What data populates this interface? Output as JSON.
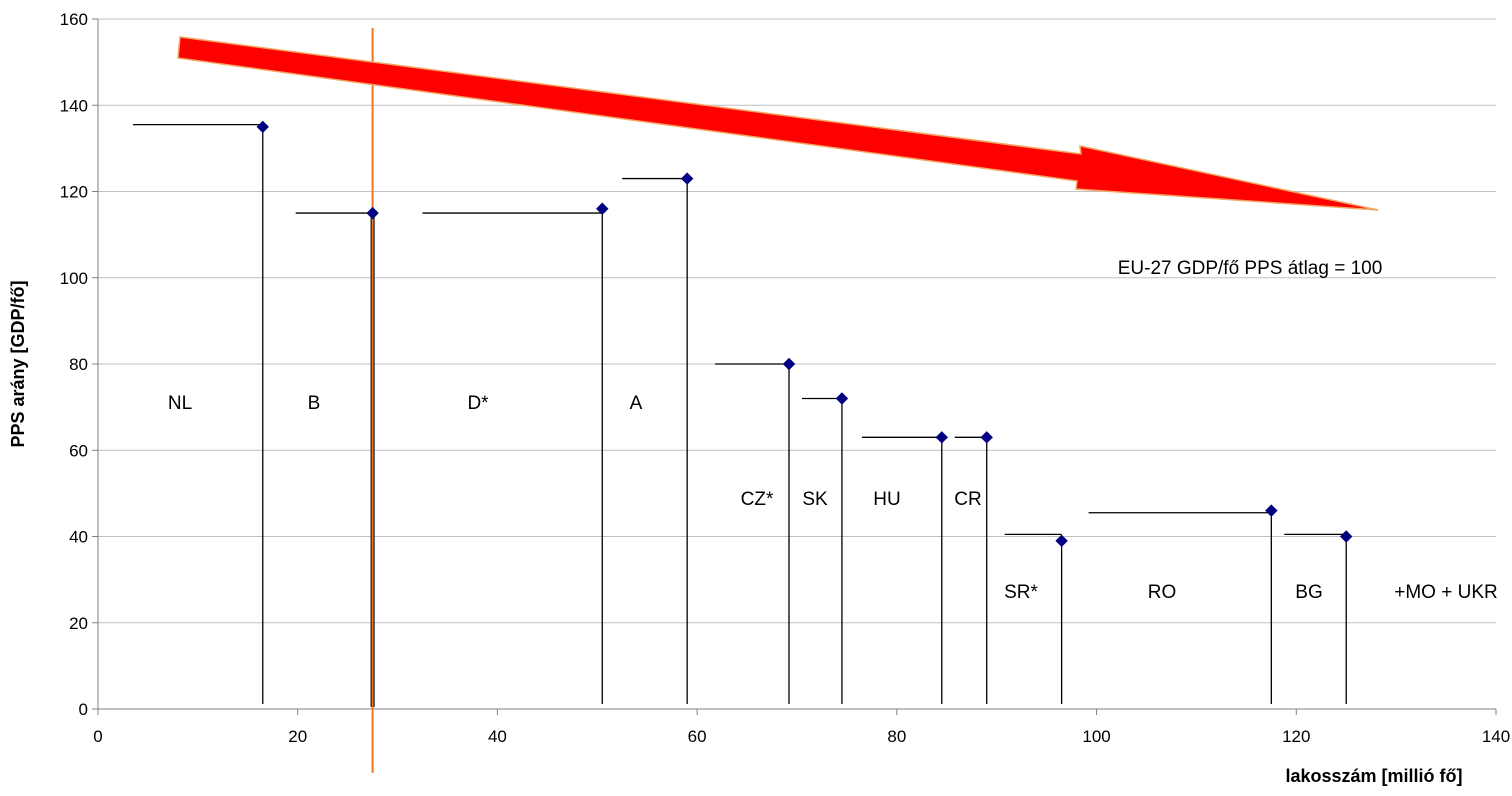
{
  "chart_data": {
    "type": "scatter",
    "xlabel": "lakosszám [millió fő]",
    "ylabel": "PPS arány [GDP/fő]",
    "xlim": [
      0,
      140
    ],
    "ylim": [
      0,
      160
    ],
    "x_ticks": [
      0,
      20,
      40,
      60,
      80,
      100,
      120,
      140
    ],
    "y_ticks": [
      0,
      20,
      40,
      60,
      80,
      100,
      120,
      140,
      160
    ],
    "x_tick_labels": [
      "0",
      "20",
      "40",
      "60",
      "80",
      "100",
      "120",
      "140"
    ],
    "y_tick_labels": [
      "0",
      "20",
      "40",
      "60",
      "80",
      "100",
      "120",
      "140",
      "160"
    ],
    "grid": "horizontal",
    "points": [
      {
        "x": 16.5,
        "y": 135
      },
      {
        "x": 27.5,
        "y": 115
      },
      {
        "x": 50.5,
        "y": 116
      },
      {
        "x": 59,
        "y": 123
      },
      {
        "x": 69.2,
        "y": 80
      },
      {
        "x": 74.5,
        "y": 72
      },
      {
        "x": 84.5,
        "y": 63
      },
      {
        "x": 89,
        "y": 63
      },
      {
        "x": 96.5,
        "y": 39
      },
      {
        "x": 117.5,
        "y": 46
      },
      {
        "x": 125,
        "y": 40
      }
    ],
    "segments": [
      {
        "from_x": 3.5,
        "to_x": 16.5,
        "y": 135.5
      },
      {
        "from_x": 19.8,
        "to_x": 27.5,
        "y": 115
      },
      {
        "from_x": 32.5,
        "to_x": 50.5,
        "y": 115
      },
      {
        "from_x": 52.5,
        "to_x": 59,
        "y": 123
      },
      {
        "from_x": 61.8,
        "to_x": 69.2,
        "y": 80
      },
      {
        "from_x": 70.5,
        "to_x": 74.5,
        "y": 72
      },
      {
        "from_x": 76.5,
        "to_x": 84.5,
        "y": 63
      },
      {
        "from_x": 85.8,
        "to_x": 89,
        "y": 63
      },
      {
        "from_x": 90.8,
        "to_x": 96.5,
        "y": 40.5
      },
      {
        "from_x": 99.2,
        "to_x": 117.5,
        "y": 45.5
      },
      {
        "from_x": 118.8,
        "to_x": 125,
        "y": 40.5
      }
    ],
    "region_labels": [
      "NL",
      "B",
      "D*",
      "A",
      "CZ*",
      "SK",
      "HU",
      "CR",
      "SR*",
      "RO",
      "BG",
      "+MO + UKR"
    ],
    "annotation": "EU-27 GDP/fő PPS átlag = 100",
    "reference_x": 27.5,
    "colors": {
      "marker": "#000080",
      "line": "#000000",
      "reference_line": "#E87722",
      "arrow_fill": "#FF0000",
      "arrow_stroke": "#F4A460",
      "grid": "#C0C0C0"
    }
  }
}
